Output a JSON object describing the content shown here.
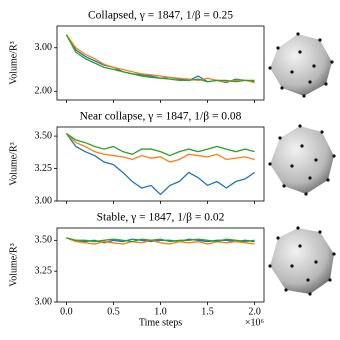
{
  "chart_data": [
    {
      "type": "line",
      "title": "Collapsed, γ = 1847, 1/β = 0.25",
      "ylabel": "Volume/R³",
      "x": [
        0,
        0.1,
        0.2,
        0.3,
        0.4,
        0.5,
        0.6,
        0.7,
        0.8,
        0.9,
        1,
        1.1,
        1.2,
        1.3,
        1.4,
        1.5,
        1.6,
        1.7,
        1.8,
        1.9,
        2
      ],
      "xlim": [
        -0.1,
        2.1
      ],
      "xticks": [
        0,
        0.5,
        1,
        1.5,
        2
      ],
      "show_xticklabels": false,
      "ylim": [
        1.8,
        3.5
      ],
      "yticks": [
        {
          "value": 2,
          "label": "2.00"
        },
        {
          "value": 3,
          "label": "3.00"
        }
      ],
      "series": [
        {
          "color": "#1f77b4",
          "values": [
            3.3,
            2.95,
            2.8,
            2.7,
            2.6,
            2.55,
            2.45,
            2.4,
            2.38,
            2.35,
            2.3,
            2.32,
            2.28,
            2.25,
            2.35,
            2.22,
            2.25,
            2.2,
            2.28,
            2.25,
            2.22
          ]
        },
        {
          "color": "#ff7f0e",
          "values": [
            3.3,
            3.0,
            2.85,
            2.75,
            2.62,
            2.55,
            2.5,
            2.45,
            2.4,
            2.38,
            2.35,
            2.32,
            2.3,
            2.28,
            2.25,
            2.3,
            2.25,
            2.22,
            2.25,
            2.25,
            2.2
          ]
        },
        {
          "color": "#2ca02c",
          "values": [
            3.3,
            2.9,
            2.75,
            2.65,
            2.55,
            2.5,
            2.45,
            2.4,
            2.35,
            2.32,
            2.3,
            2.28,
            2.25,
            2.25,
            2.28,
            2.22,
            2.25,
            2.25,
            2.22,
            2.25,
            2.25
          ]
        }
      ]
    },
    {
      "type": "line",
      "title": "Near collapse, γ = 1847, 1/β = 0.08",
      "ylabel": "Volume/R³",
      "x": [
        0,
        0.1,
        0.2,
        0.3,
        0.4,
        0.5,
        0.6,
        0.7,
        0.8,
        0.9,
        1,
        1.1,
        1.2,
        1.3,
        1.4,
        1.5,
        1.6,
        1.7,
        1.8,
        1.9,
        2
      ],
      "xlim": [
        -0.1,
        2.1
      ],
      "xticks": [
        0,
        0.5,
        1,
        1.5,
        2
      ],
      "show_xticklabels": false,
      "ylim": [
        3.0,
        3.57
      ],
      "yticks": [
        {
          "value": 3,
          "label": "3.00"
        },
        3.25,
        {
          "value": 3.5,
          "label": "3.50"
        }
      ],
      "series": [
        {
          "color": "#1f77b4",
          "values": [
            3.52,
            3.42,
            3.38,
            3.35,
            3.3,
            3.28,
            3.22,
            3.15,
            3.1,
            3.12,
            3.05,
            3.12,
            3.15,
            3.22,
            3.18,
            3.12,
            3.15,
            3.1,
            3.15,
            3.17,
            3.22
          ]
        },
        {
          "color": "#ff7f0e",
          "values": [
            3.52,
            3.45,
            3.42,
            3.38,
            3.36,
            3.35,
            3.34,
            3.32,
            3.35,
            3.33,
            3.34,
            3.3,
            3.32,
            3.36,
            3.35,
            3.34,
            3.36,
            3.32,
            3.33,
            3.34,
            3.32
          ]
        },
        {
          "color": "#2ca02c",
          "values": [
            3.52,
            3.47,
            3.45,
            3.42,
            3.4,
            3.42,
            3.38,
            3.36,
            3.4,
            3.4,
            3.38,
            3.35,
            3.38,
            3.4,
            3.38,
            3.4,
            3.42,
            3.4,
            3.38,
            3.4,
            3.38
          ]
        }
      ]
    },
    {
      "type": "line",
      "title": "Stable, γ = 1847, 1/β = 0.02",
      "ylabel": "Volume/R³",
      "xlabel": "Time steps",
      "x_offset_label": "×10⁶",
      "x": [
        0,
        0.1,
        0.2,
        0.3,
        0.4,
        0.5,
        0.6,
        0.7,
        0.8,
        0.9,
        1,
        1.1,
        1.2,
        1.3,
        1.4,
        1.5,
        1.6,
        1.7,
        1.8,
        1.9,
        2
      ],
      "xlim": [
        -0.1,
        2.1
      ],
      "xticks": [
        {
          "value": 0,
          "label": "0.0"
        },
        0.5,
        {
          "value": 1,
          "label": "1.0"
        },
        1.5,
        {
          "value": 2,
          "label": "2.0"
        }
      ],
      "show_xticklabels": true,
      "ylim": [
        3.0,
        3.6
      ],
      "yticks": [
        {
          "value": 3,
          "label": "3.00"
        },
        3.25,
        {
          "value": 3.5,
          "label": "3.50"
        }
      ],
      "series": [
        {
          "color": "#1f77b4",
          "values": [
            3.52,
            3.5,
            3.49,
            3.5,
            3.48,
            3.5,
            3.49,
            3.51,
            3.5,
            3.49,
            3.5,
            3.5,
            3.49,
            3.51,
            3.5,
            3.49,
            3.5,
            3.5,
            3.49,
            3.5,
            3.49
          ]
        },
        {
          "color": "#ff7f0e",
          "values": [
            3.52,
            3.49,
            3.48,
            3.47,
            3.49,
            3.48,
            3.47,
            3.49,
            3.48,
            3.5,
            3.48,
            3.47,
            3.49,
            3.48,
            3.49,
            3.47,
            3.49,
            3.48,
            3.49,
            3.48,
            3.47
          ]
        },
        {
          "color": "#2ca02c",
          "values": [
            3.52,
            3.5,
            3.5,
            3.49,
            3.5,
            3.51,
            3.5,
            3.49,
            3.51,
            3.5,
            3.51,
            3.49,
            3.5,
            3.5,
            3.51,
            3.5,
            3.49,
            3.51,
            3.5,
            3.49,
            3.5
          ]
        }
      ]
    }
  ]
}
